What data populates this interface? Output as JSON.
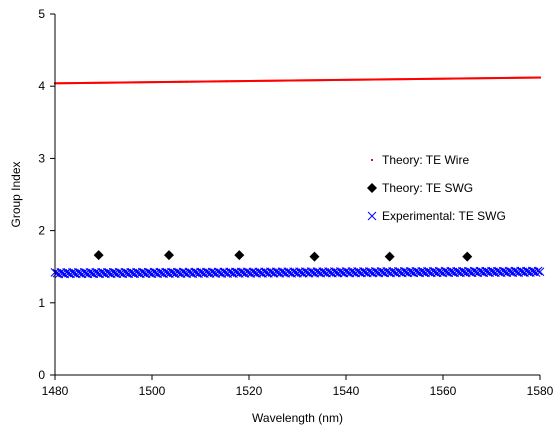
{
  "chart_data": {
    "type": "scatter",
    "title": "",
    "xlabel": "Wavelength (nm)",
    "ylabel": "Group Index",
    "xlim": [
      1480,
      1580
    ],
    "ylim": [
      0,
      5
    ],
    "xticks": [
      1480,
      1500,
      1520,
      1540,
      1560,
      1580
    ],
    "yticks": [
      0,
      1,
      2,
      3,
      4,
      5
    ],
    "grid": false,
    "legend_position": "right",
    "series": [
      {
        "name": "Theory: TE Wire",
        "marker": "dot",
        "color": "#ff0000",
        "x_start": 1480,
        "x_end": 1580,
        "x_step": 0.25,
        "y_start": 4.04,
        "y_end": 4.12
      },
      {
        "name": "Theory: TE SWG",
        "marker": "diamond",
        "color": "#000000",
        "x": [
          1489,
          1503.5,
          1518,
          1533.5,
          1549,
          1565
        ],
        "y": [
          1.66,
          1.66,
          1.66,
          1.64,
          1.64,
          1.64
        ]
      },
      {
        "name": "Experimental: TE SWG",
        "marker": "x",
        "color": "#0000ff",
        "x_start": 1480,
        "x_end": 1580,
        "x_step": 0.4,
        "y_start": 1.41,
        "y_end": 1.43
      }
    ]
  }
}
